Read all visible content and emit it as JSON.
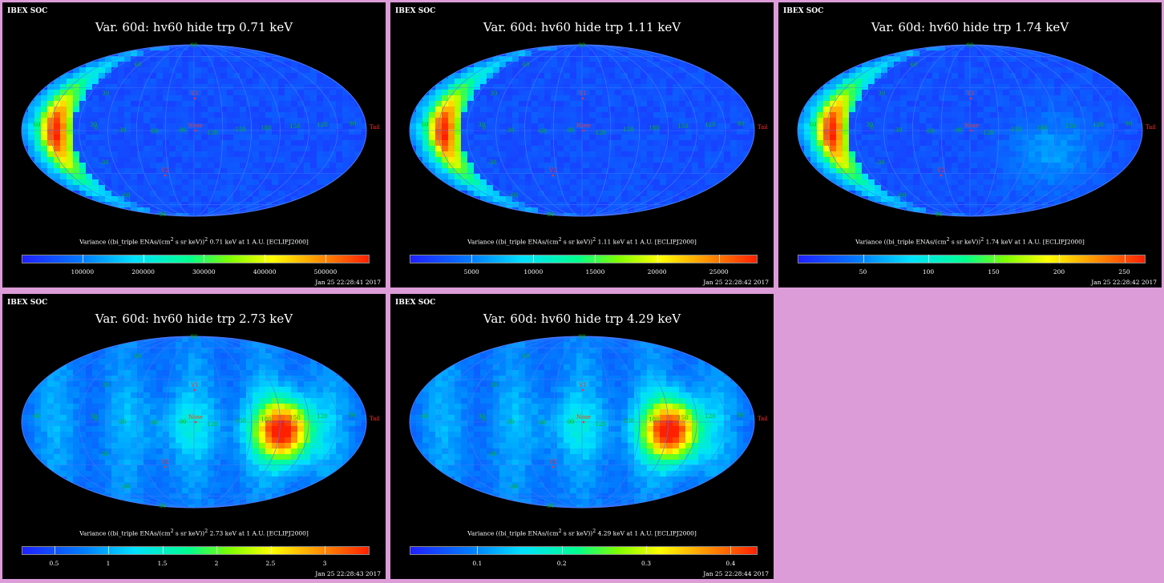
{
  "panels": [
    {
      "title": "Var. 60d: hv60 hide trp 0.71 keV",
      "header": "IBEX SOC",
      "colorbar_title_pre": "Variance ((bi_triple ENAs/(cm",
      "colorbar_title_post": " s sr keV))",
      "colorbar_title_tail": " 0.71 keV at 1 A.U. [ECLIPJ2000]",
      "timestamp": "Jan 25 22:28:41 2017",
      "ticks": [
        "100000",
        "200000",
        "300000",
        "400000",
        "500000"
      ],
      "tick_values": [
        100000,
        200000,
        300000,
        400000,
        500000
      ],
      "range": [
        0,
        570000
      ],
      "pattern": "ribbon"
    },
    {
      "title": "Var. 60d: hv60 hide trp 1.11 keV",
      "header": "IBEX SOC",
      "colorbar_title_pre": "Variance ((bi_triple ENAs/(cm",
      "colorbar_title_post": " s sr keV))",
      "colorbar_title_tail": " 1.11 keV at 1 A.U. [ECLIPJ2000]",
      "timestamp": "Jan 25 22:28:42 2017",
      "ticks": [
        "5000",
        "10000",
        "15000",
        "20000",
        "25000"
      ],
      "tick_values": [
        5000,
        10000,
        15000,
        20000,
        25000
      ],
      "range": [
        0,
        28000
      ],
      "pattern": "ribbon"
    },
    {
      "title": "Var. 60d: hv60 hide trp 1.74 keV",
      "header": "IBEX SOC",
      "colorbar_title_pre": "Variance ((bi_triple ENAs/(cm",
      "colorbar_title_post": " s sr keV))",
      "colorbar_title_tail": " 1.74 keV at 1 A.U. [ECLIPJ2000]",
      "timestamp": "Jan 25 22:28:42 2017",
      "ticks": [
        "50",
        "100",
        "150",
        "200",
        "250"
      ],
      "tick_values": [
        50,
        100,
        150,
        200,
        250
      ],
      "range": [
        0,
        265
      ],
      "pattern": "ribbon_tail"
    },
    {
      "title": "Var. 60d: hv60 hide trp 2.73 keV",
      "header": "IBEX SOC",
      "colorbar_title_pre": "Variance ((bi_triple ENAs/(cm",
      "colorbar_title_post": " s sr keV))",
      "colorbar_title_tail": " 2.73 keV at 1 A.U. [ECLIPJ2000]",
      "timestamp": "Jan 25 22:28:43 2017",
      "ticks": [
        "0.5",
        "1",
        "1.5",
        "2",
        "2.5",
        "3"
      ],
      "tick_values": [
        0.5,
        1,
        1.5,
        2,
        2.5,
        3
      ],
      "range": [
        0.2,
        3.4
      ],
      "pattern": "hotspot"
    },
    {
      "title": "Var. 60d: hv60 hide trp 4.29 keV",
      "header": "IBEX SOC",
      "colorbar_title_pre": "Variance ((bi_triple ENAs/(cm",
      "colorbar_title_post": " s sr keV))",
      "colorbar_title_tail": " 4.29 keV at 1 A.U. [ECLIPJ2000]",
      "timestamp": "Jan 25 22:28:44 2017",
      "ticks": [
        "0.1",
        "0.2",
        "0.3",
        "0.4"
      ],
      "tick_values": [
        0.1,
        0.2,
        0.3,
        0.4
      ],
      "range": [
        0.02,
        0.43
      ],
      "pattern": "hotspot"
    }
  ],
  "map_labels": {
    "grid_lon": [
      "60",
      "30",
      "0",
      "-30",
      "-60",
      "-90",
      "-120",
      "-150",
      "180",
      "150",
      "120",
      "90"
    ],
    "grid_lat": [
      "90",
      "60",
      "30",
      "-30",
      "-60",
      "-90"
    ],
    "markers": {
      "v1": "V1",
      "v2": "V2",
      "nose": "Nose",
      "tail": "Tail"
    }
  },
  "chart_data": [
    {
      "type": "heatmap",
      "title": "Var. 60d: hv60 hide trp 0.71 keV",
      "projection": "Mollweide (ECLIPJ2000)",
      "colorbar_ticks": [
        100000,
        200000,
        300000,
        400000,
        500000
      ]
    },
    {
      "type": "heatmap",
      "title": "Var. 60d: hv60 hide trp 1.11 keV",
      "projection": "Mollweide (ECLIPJ2000)",
      "colorbar_ticks": [
        5000,
        10000,
        15000,
        20000,
        25000
      ]
    },
    {
      "type": "heatmap",
      "title": "Var. 60d: hv60 hide trp 1.74 keV",
      "projection": "Mollweide (ECLIPJ2000)",
      "colorbar_ticks": [
        50,
        100,
        150,
        200,
        250
      ]
    },
    {
      "type": "heatmap",
      "title": "Var. 60d: hv60 hide trp 2.73 keV",
      "projection": "Mollweide (ECLIPJ2000)",
      "colorbar_ticks": [
        0.5,
        1,
        1.5,
        2,
        2.5,
        3
      ]
    },
    {
      "type": "heatmap",
      "title": "Var. 60d: hv60 hide trp 4.29 keV",
      "projection": "Mollweide (ECLIPJ2000)",
      "colorbar_ticks": [
        0.1,
        0.2,
        0.3,
        0.4
      ]
    }
  ],
  "colors": {
    "background": "#dc9cd8",
    "panel": "#000000",
    "map_base": "#1e50ff",
    "grid": "#4a7aff",
    "label_green": "#00c000",
    "label_red": "#ff3030"
  }
}
